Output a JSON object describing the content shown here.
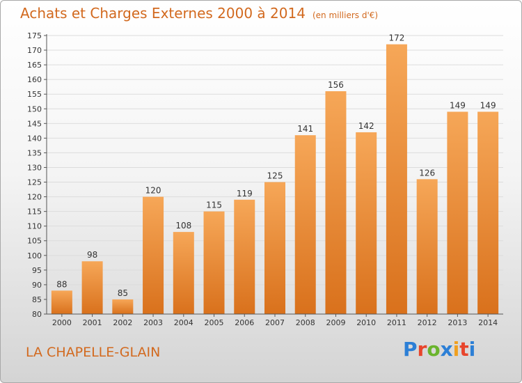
{
  "title": "Achats et Charges Externes 2000 à 2014",
  "unit": "(en milliers d'€)",
  "commune": "LA CHAPELLE-GLAIN",
  "logo": {
    "text": "Proxiti",
    "letter_colors": [
      "#2c7fd6",
      "#e8452c",
      "#6ab42d",
      "#2c7fd6",
      "#f0a020",
      "#e8452c",
      "#2c7fd6"
    ]
  },
  "colors": {
    "title": "#d2691e",
    "bar_top": "#f6a758",
    "bar_bottom": "#d9711c",
    "axis": "#555555",
    "grid": "#dcdcdc"
  },
  "chart_data": {
    "type": "bar",
    "categories": [
      "2000",
      "2001",
      "2002",
      "2003",
      "2004",
      "2005",
      "2006",
      "2007",
      "2008",
      "2009",
      "2010",
      "2011",
      "2012",
      "2013",
      "2014"
    ],
    "values": [
      88,
      98,
      85,
      120,
      108,
      115,
      119,
      125,
      141,
      156,
      142,
      172,
      126,
      149,
      149
    ],
    "ylim": [
      80,
      175
    ],
    "ytick_step": 5,
    "grid": true,
    "title": "Achats et Charges Externes 2000 à 2014",
    "ylabel": "",
    "xlabel": ""
  }
}
